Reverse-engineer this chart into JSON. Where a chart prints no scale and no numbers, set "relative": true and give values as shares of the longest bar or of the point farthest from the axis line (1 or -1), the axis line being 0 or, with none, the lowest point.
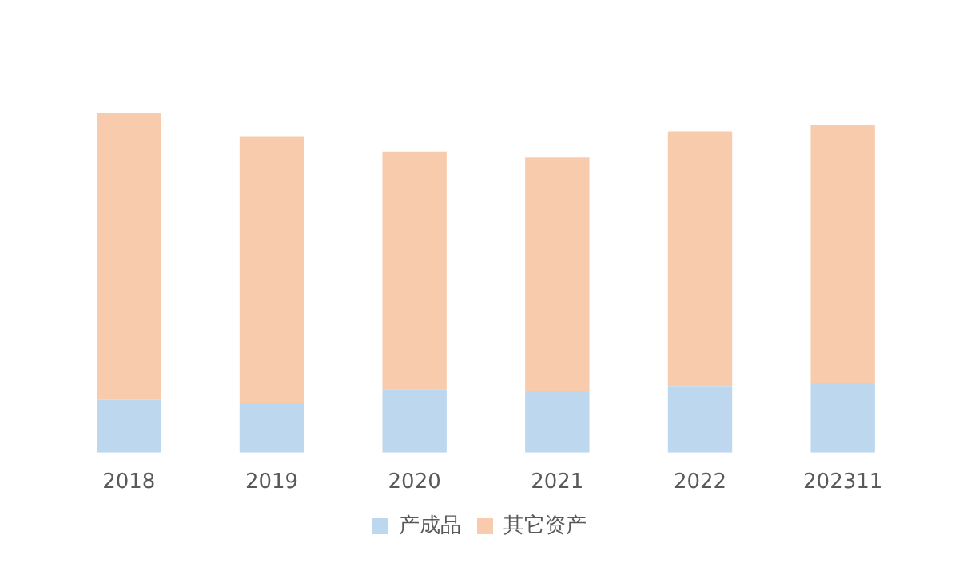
{
  "chart_data": {
    "type": "bar",
    "stacked": true,
    "relative": true,
    "categories": [
      "2018",
      "2019",
      "2020",
      "2021",
      "2022",
      "202311"
    ],
    "series": [
      {
        "name": "产成品",
        "color": "#bdd7ee",
        "values": [
          0.155,
          0.146,
          0.187,
          0.183,
          0.196,
          0.205
        ]
      },
      {
        "name": "其它资产",
        "color": "#f8cbad",
        "values": [
          0.845,
          0.785,
          0.699,
          0.685,
          0.749,
          0.758
        ]
      }
    ],
    "legend": "bottom"
  }
}
